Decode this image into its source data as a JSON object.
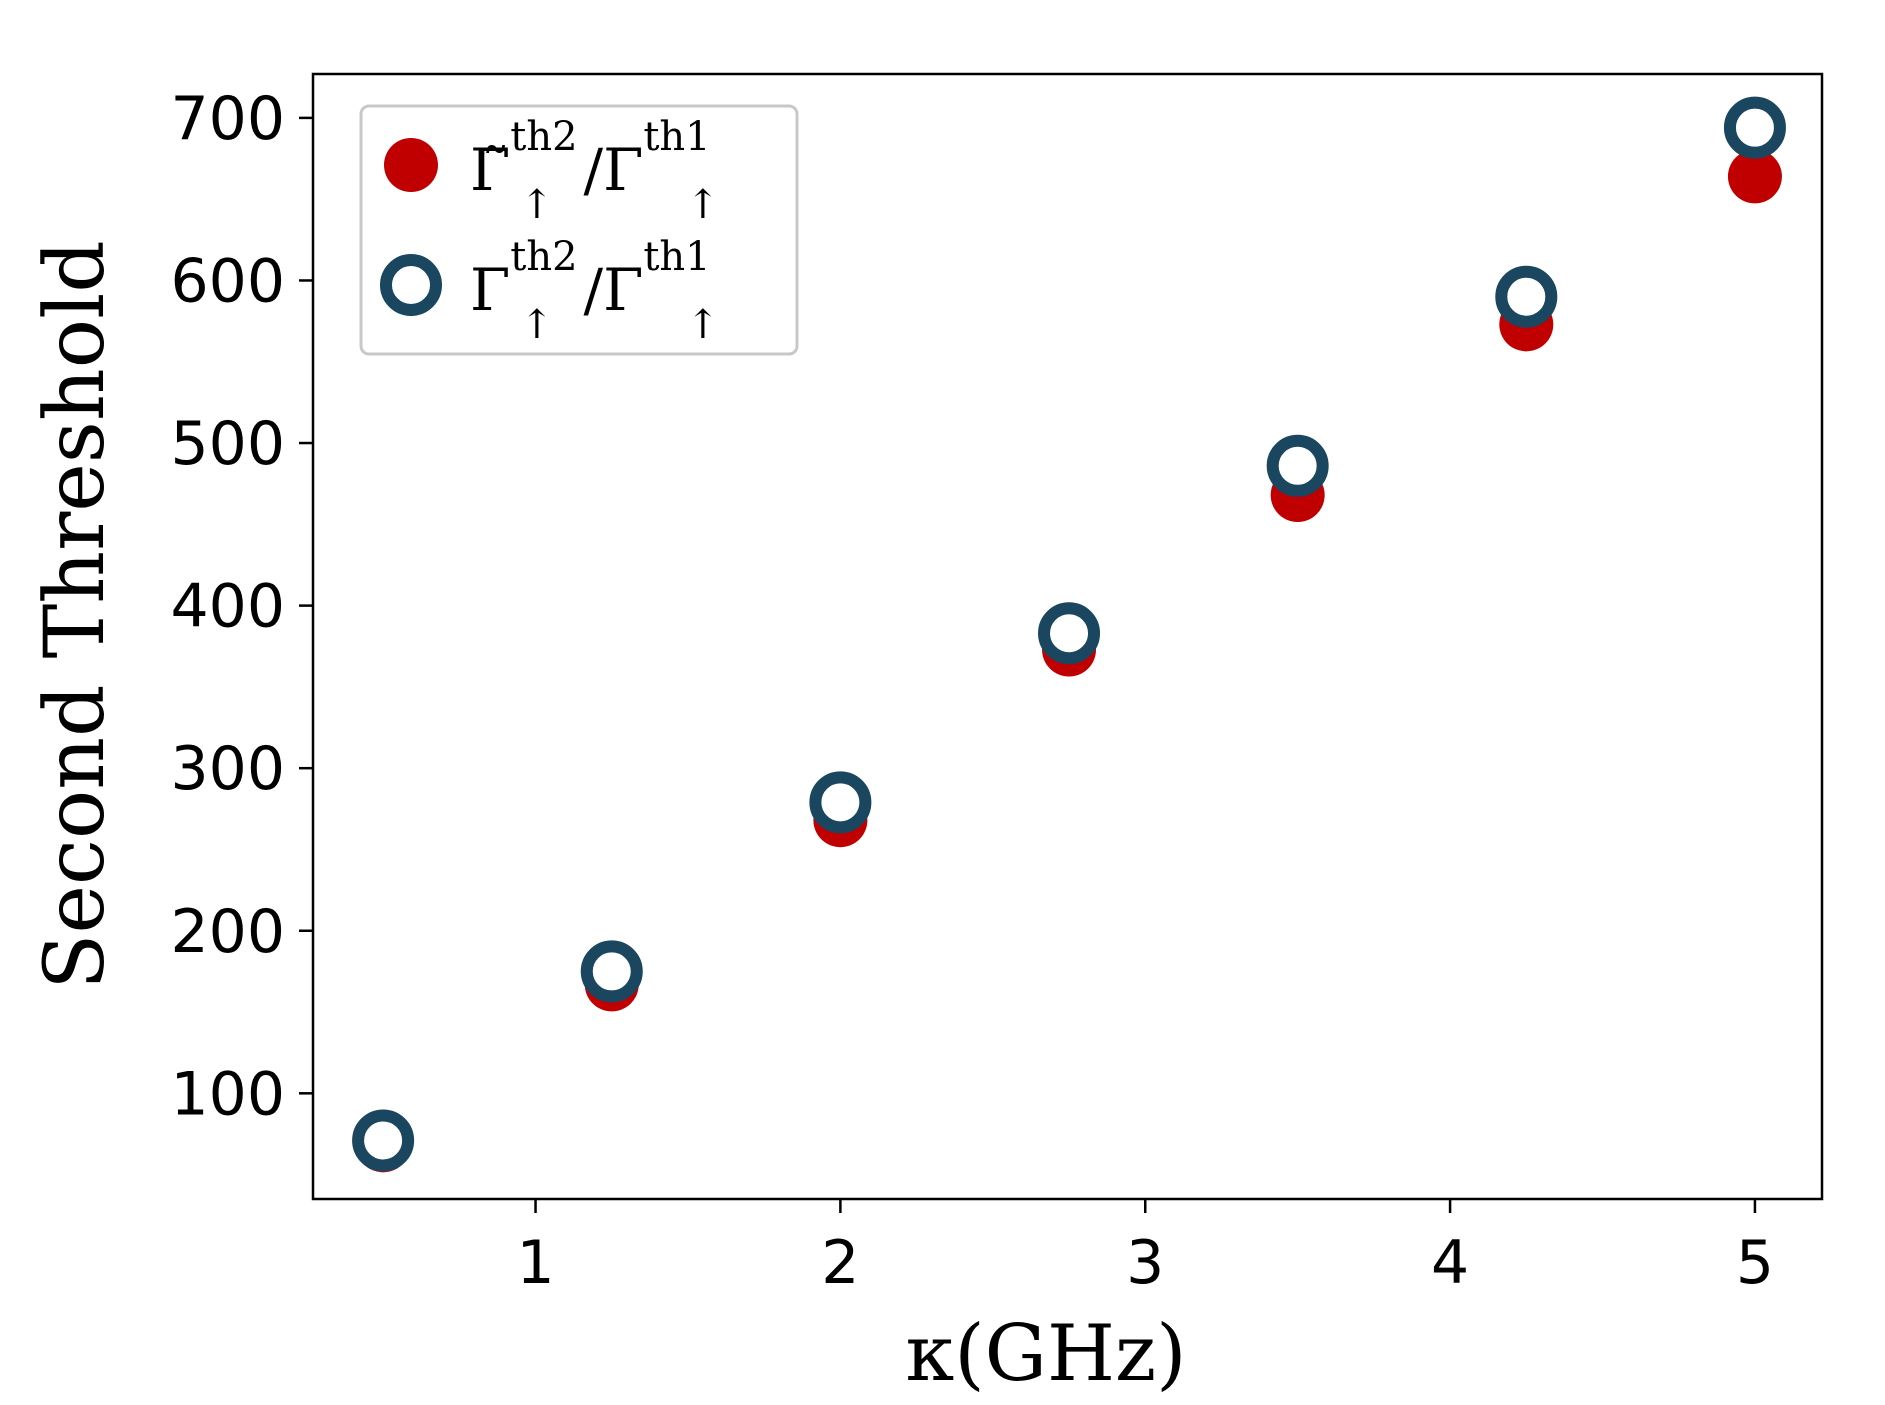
{
  "chart_data": {
    "type": "scatter",
    "title": "",
    "xlabel": "κ(GHz)",
    "ylabel": "Second Threshold",
    "xlim": [
      0.27,
      5.22
    ],
    "ylim": [
      35,
      727
    ],
    "xticks": [
      1,
      2,
      3,
      4,
      5
    ],
    "yticks": [
      100,
      200,
      300,
      400,
      500,
      600,
      700
    ],
    "grid": false,
    "legend_position": "top-left",
    "series": [
      {
        "name": "Γ̃↑th2/Γ↑th1",
        "marker": "filled-circle",
        "color": "#c00000",
        "x": [
          0.5,
          1.25,
          2.0,
          2.75,
          3.5,
          4.25,
          5.0
        ],
        "y": [
          68,
          167,
          268,
          373,
          468,
          573,
          664
        ]
      },
      {
        "name": "Γ↑th2/Γ↑th1",
        "marker": "open-circle",
        "color": "#1a4660",
        "x": [
          0.5,
          1.25,
          2.0,
          2.75,
          3.5,
          4.25,
          5.0
        ],
        "y": [
          71,
          175,
          279,
          383,
          486,
          590,
          694
        ]
      }
    ],
    "legend": {
      "entries": [
        {
          "base": "Γ̃",
          "sub": "↑",
          "sup": "th2",
          "slash": "/",
          "base2": "Γ",
          "sub2": "↑",
          "sup2": "th1"
        },
        {
          "base": "Γ",
          "sub": "↑",
          "sup": "th2",
          "slash": "/",
          "base2": "Γ",
          "sub2": "↑",
          "sup2": "th1"
        }
      ]
    }
  }
}
